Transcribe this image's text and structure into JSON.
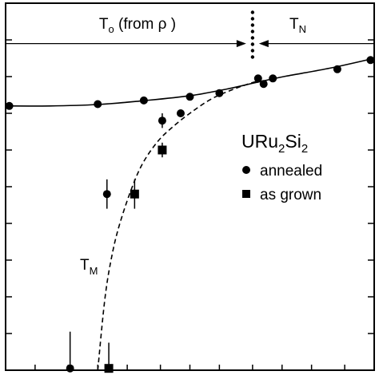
{
  "chart_data": {
    "type": "scatter",
    "title": "",
    "xlabel": "",
    "ylabel": "",
    "xlim": [
      0,
      100
    ],
    "ylim": [
      0,
      100
    ],
    "grid": false,
    "axis_ticks": {
      "left_y": [
        10,
        20,
        30,
        40,
        50,
        60,
        70,
        80,
        90
      ],
      "bottom_x": [
        8,
        17,
        25,
        33,
        42,
        50,
        58,
        67,
        75,
        83,
        92
      ]
    },
    "series": [
      {
        "name": "annealed",
        "marker": "circle",
        "points": [
          {
            "x": 1,
            "y": 72
          },
          {
            "x": 25,
            "y": 72.5
          },
          {
            "x": 37.5,
            "y": 73.5
          },
          {
            "x": 50,
            "y": 74.5
          },
          {
            "x": 58,
            "y": 75.5
          },
          {
            "x": 68.5,
            "y": 79.5
          },
          {
            "x": 70,
            "y": 78
          },
          {
            "x": 72.5,
            "y": 79.5
          },
          {
            "x": 90,
            "y": 82
          },
          {
            "x": 99,
            "y": 84.5
          },
          {
            "x": 47.5,
            "y": 70
          },
          {
            "x": 42.5,
            "y": 68,
            "yerr": 2
          },
          {
            "x": 27.5,
            "y": 48,
            "yerr": 4
          },
          {
            "x": 17.5,
            "y": 0.5,
            "yerr": 10
          }
        ]
      },
      {
        "name": "as grown",
        "marker": "square",
        "points": [
          {
            "x": 42.5,
            "y": 60,
            "yerr": 2
          },
          {
            "x": 35,
            "y": 48,
            "yerr": 4
          },
          {
            "x": 28,
            "y": 0.5,
            "yerr": 7
          }
        ]
      }
    ],
    "curves": [
      {
        "style": "solid",
        "x": [
          0,
          12,
          25,
          37,
          50,
          60,
          68,
          76,
          88,
          100
        ],
        "y": [
          72,
          72,
          72.4,
          73.4,
          74.8,
          76.6,
          78.4,
          80.1,
          82.3,
          85
        ]
      },
      {
        "style": "dashed",
        "x": [
          25,
          27,
          29,
          31,
          34,
          37,
          41,
          45,
          50,
          56,
          63,
          69
        ],
        "y": [
          0,
          20,
          32,
          40,
          49,
          56,
          62,
          66,
          70,
          74,
          77,
          79
        ]
      }
    ],
    "legend": {
      "position": "right",
      "title_parts": [
        "URu",
        "2",
        "Si",
        "2"
      ],
      "entries": [
        {
          "marker": "circle",
          "label": "annealed"
        },
        {
          "marker": "square",
          "label": "as grown"
        }
      ]
    },
    "annotations": {
      "to_label": "T",
      "to_sub": "o",
      "to_suffix": " (from ρ )",
      "tn_label": "T",
      "tn_sub": "N",
      "tm_label": "T",
      "tm_sub": "M",
      "boundary_x": 67
    }
  }
}
